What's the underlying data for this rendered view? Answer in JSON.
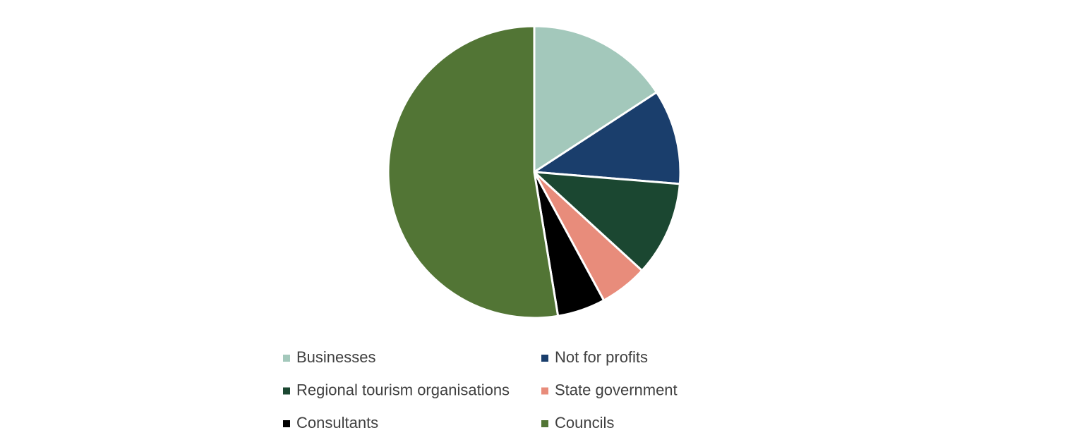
{
  "chart_data": {
    "type": "pie",
    "categories": [
      "Businesses",
      "Not for profits",
      "Regional tourism organisations",
      "State government",
      "Consultants",
      "Councils"
    ],
    "values": [
      15.8,
      10.5,
      10.5,
      5.3,
      5.3,
      52.6
    ],
    "colors": [
      "#a3c8bb",
      "#1a3e6c",
      "#1b4731",
      "#e88c7b",
      "#000000",
      "#527535"
    ]
  }
}
